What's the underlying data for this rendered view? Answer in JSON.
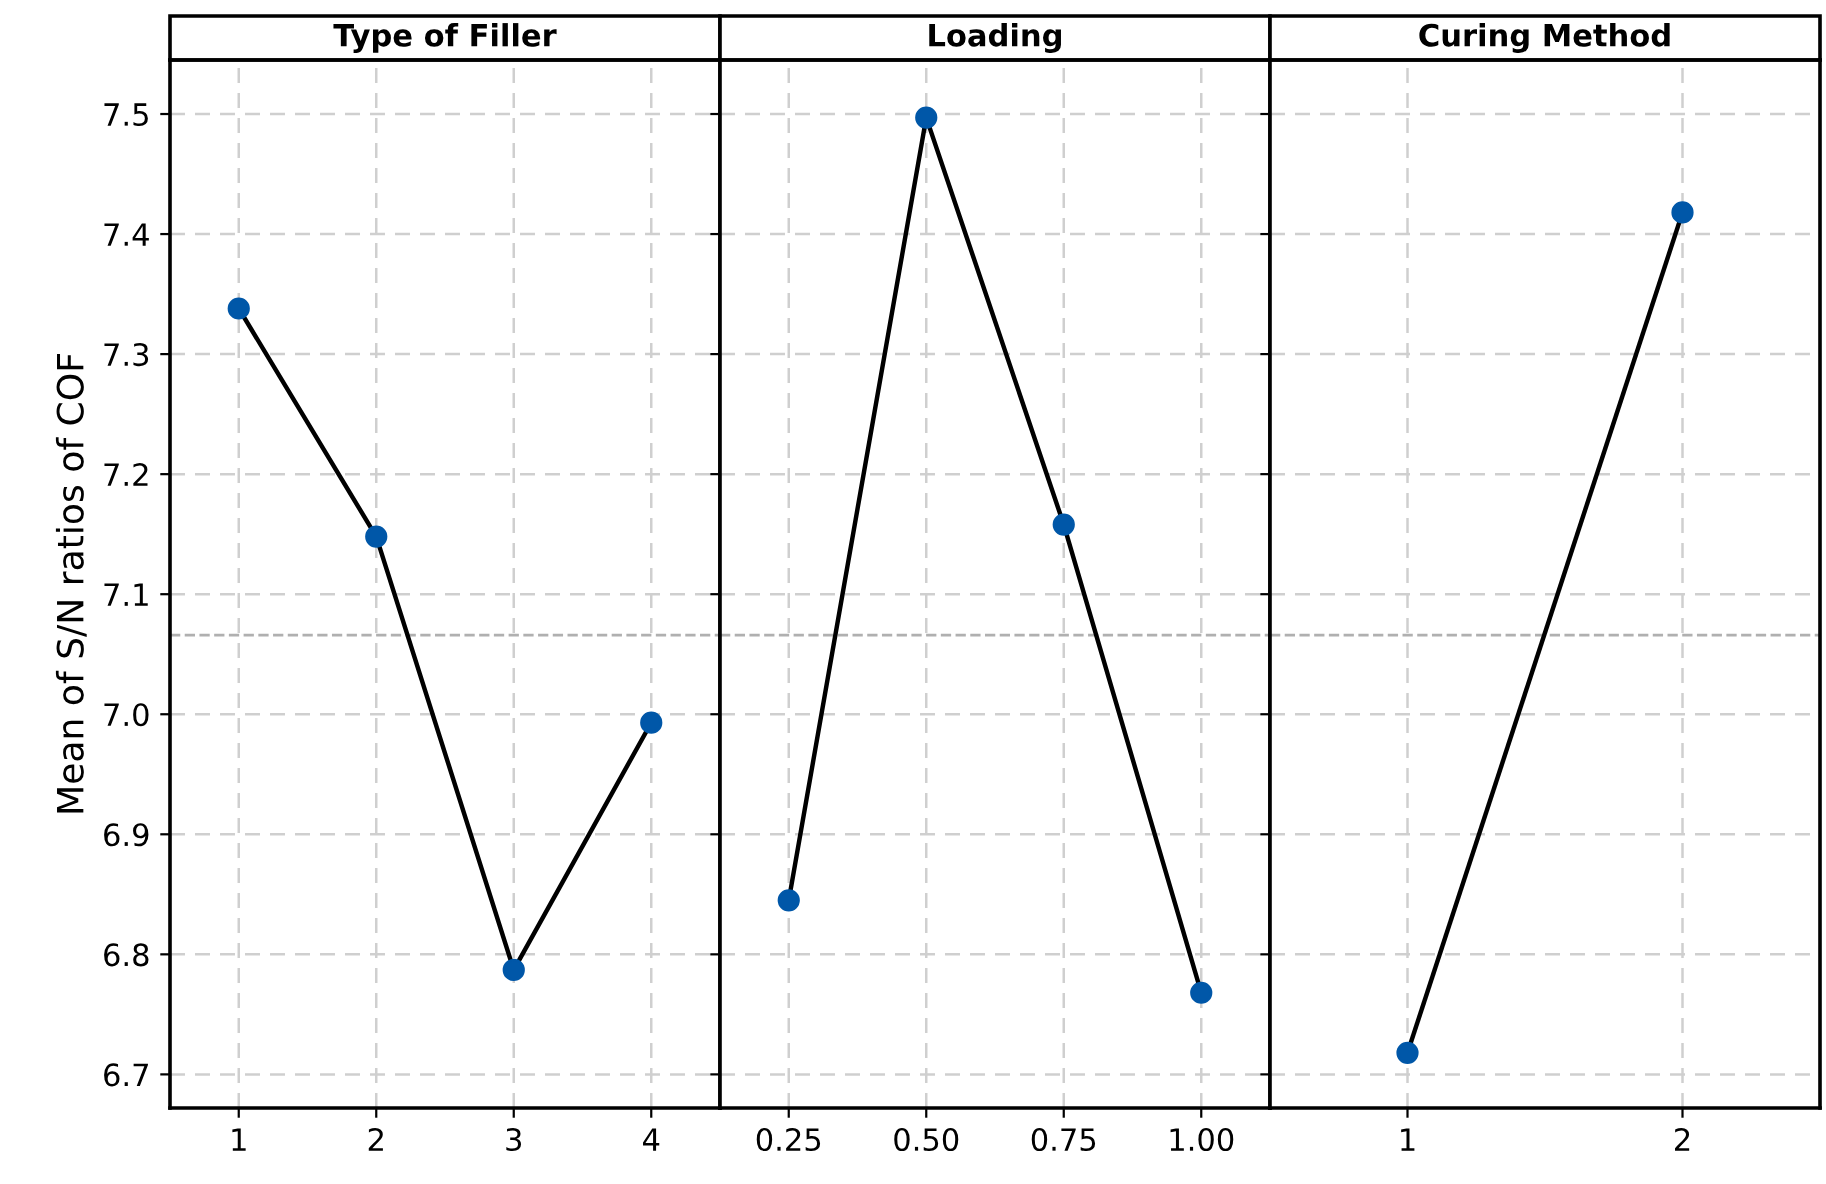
{
  "chart_data": [
    {
      "type": "line",
      "title": "Type of Filler",
      "ylabel": "Mean of S/N ratios of COF",
      "categories": [
        "1",
        "2",
        "3",
        "4"
      ],
      "series": [
        {
          "color": "#0057a8",
          "values": [
            7.338,
            7.148,
            6.787,
            6.993
          ]
        }
      ],
      "ylim": [
        6.672,
        7.545
      ],
      "yticks": [
        6.7,
        6.8,
        6.9,
        {
          "value": 7.0,
          "label": "7.0"
        },
        7.1,
        7.2,
        7.3,
        7.4,
        7.5
      ],
      "grid": true,
      "marker": "circle",
      "line_style": "solid",
      "ref_lines": [
        {
          "axis": "y",
          "value": 7.066,
          "line_style": "dashed",
          "color": "#b0b0b0"
        }
      ]
    },
    {
      "type": "line",
      "title": "Loading",
      "categories": [
        "0.25",
        "0.50",
        "0.75",
        "1.00"
      ],
      "series": [
        {
          "color": "#0057a8",
          "values": [
            6.845,
            7.497,
            7.158,
            6.768
          ]
        }
      ],
      "ylim": [
        6.672,
        7.545
      ],
      "yticks": [
        6.7,
        6.8,
        6.9,
        7.0,
        7.1,
        7.2,
        7.3,
        7.4,
        7.5
      ],
      "grid": true,
      "marker": "circle",
      "line_style": "solid",
      "tick_labels": "x",
      "ref_lines": [
        {
          "axis": "y",
          "value": 7.066,
          "line_style": "dashed",
          "color": "#b0b0b0"
        }
      ]
    },
    {
      "type": "line",
      "title": "Curing Method",
      "categories": [
        "1",
        "2"
      ],
      "series": [
        {
          "color": "#0057a8",
          "values": [
            6.718,
            7.418
          ]
        }
      ],
      "ylim": [
        6.672,
        7.545
      ],
      "yticks": [
        6.7,
        6.8,
        6.9,
        7.0,
        7.1,
        7.2,
        7.3,
        7.4,
        7.5
      ],
      "grid": true,
      "marker": "circle",
      "line_style": "solid",
      "tick_labels": "x",
      "ref_lines": [
        {
          "axis": "y",
          "value": 7.066,
          "line_style": "dashed",
          "color": "#b0b0b0"
        }
      ]
    }
  ]
}
